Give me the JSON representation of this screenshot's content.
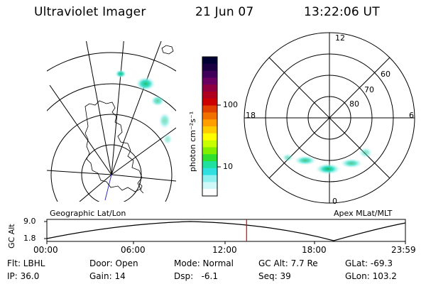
{
  "header": {
    "instrument": "Ultraviolet Imager",
    "date": "21 Jun 07",
    "time": "13:22:06 UT"
  },
  "colorbar": {
    "label": "photon cm⁻²s⁻¹",
    "ticks": [
      "100",
      "10"
    ],
    "colors": [
      "#000033",
      "#1a0040",
      "#40005a",
      "#6a0060",
      "#900040",
      "#b00020",
      "#cc0000",
      "#e04000",
      "#f07000",
      "#ffa000",
      "#ffcc00",
      "#ffff00",
      "#c8ff00",
      "#80f000",
      "#30e030",
      "#20e0a0",
      "#30e0e0",
      "#90f0f0",
      "#d0f8f8",
      "#ffffff"
    ]
  },
  "left_panel": {
    "label": "Geographic Lat/Lon"
  },
  "right_panel": {
    "label": "Apex  MLat/MLT",
    "mlt_labels": {
      "top": "12",
      "left": "18",
      "right": "6",
      "bottom": "0"
    },
    "lat_labels": [
      "60",
      "70",
      "80"
    ]
  },
  "altitude_plot": {
    "ylabel": "GC Alt",
    "y_ticks": [
      "9.0",
      "1.8"
    ],
    "x_ticks": [
      "00:00",
      "06:00",
      "12:00",
      "18:00",
      "23:59"
    ],
    "current_time_fraction": 0.557,
    "marker_color": "#dd0000"
  },
  "status": {
    "filter": "Flt: LBHL",
    "ip": "IP: 36.0",
    "door": "Door: Open",
    "gain": "Gain: 14",
    "mode": "Mode: Normal",
    "dsp": "Dsp:   -6.1",
    "gc_alt": "GC Alt: 7.7 Re",
    "seq": "Seq: 39",
    "glat": "GLat: -69.3",
    "glon": "GLon: 103.2"
  }
}
